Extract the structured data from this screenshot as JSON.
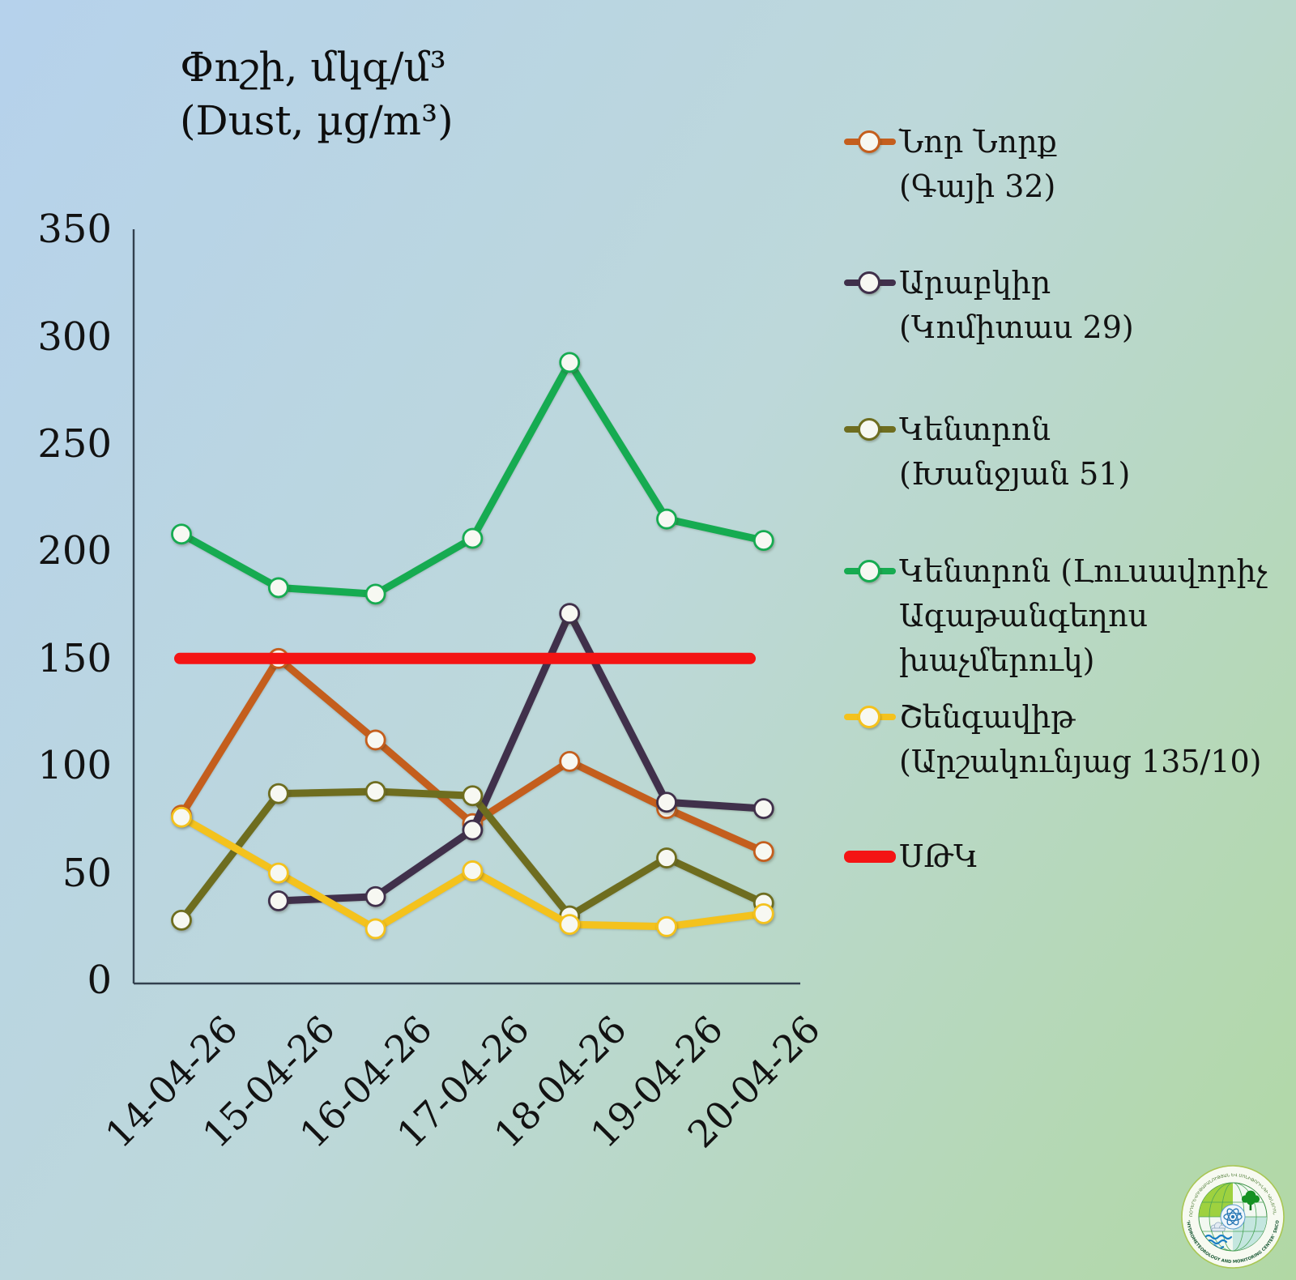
{
  "title": {
    "line1": "Փոշի, մկգ/մ³",
    "line2": "(Dust, µg/m³)"
  },
  "chart_data": {
    "type": "line",
    "x": [
      "14-04-26",
      "15-04-26",
      "16-04-26",
      "17-04-26",
      "18-04-26",
      "19-04-26",
      "20-04-26"
    ],
    "ylim": [
      0,
      350
    ],
    "yticks": [
      0,
      50,
      100,
      150,
      200,
      250,
      300,
      350
    ],
    "grid": false,
    "legend_position": "right",
    "marker_fill": "#f7f8f2",
    "series": [
      {
        "name": "Նոր Նորք (Գայի 32)",
        "legend_lines": [
          "Նոր Նորք",
          "(Գայի 32)"
        ],
        "color": "#c45e1d",
        "marker": "circle",
        "values": [
          77,
          150,
          112,
          73,
          102,
          80,
          60
        ]
      },
      {
        "name": "Արաբկիր (Կոմիտաս 29)",
        "legend_lines": [
          "Արաբկիր",
          "(Կոմիտաս 29)"
        ],
        "color": "#40304b",
        "marker": "circle",
        "values": [
          null,
          37,
          39,
          70,
          171,
          83,
          80
        ]
      },
      {
        "name": "Կենտրոն (Խանջյան 51)",
        "legend_lines": [
          "Կենտրոն",
          "(Խանջյան 51)"
        ],
        "color": "#6e6d1f",
        "marker": "circle",
        "values": [
          28,
          87,
          88,
          86,
          30,
          57,
          36
        ]
      },
      {
        "name": "Կենտրոն (Լուսավորիչ Ագաթանգեղոս խաչմերուկ)",
        "legend_lines": [
          "Կենտրոն (Լուսավորիչ",
          "Ագաթանգեղոս",
          "խաչմերուկ)"
        ],
        "color": "#16ab51",
        "marker": "circle",
        "values": [
          208,
          183,
          180,
          206,
          288,
          215,
          205
        ]
      },
      {
        "name": "Շենգավիթ (Արշակունյաց 135/10)",
        "legend_lines": [
          "Շենգավիթ",
          "(Արշակունյաց 135/10)"
        ],
        "color": "#f4c21d",
        "marker": "circle",
        "values": [
          76,
          50,
          24,
          51,
          26,
          25,
          31
        ]
      }
    ],
    "threshold": {
      "name": "ՍԹԿ",
      "legend_lines": [
        "ՍԹԿ"
      ],
      "color": "#f41414",
      "value": 150
    }
  },
  "logo": {
    "top_text": "ՀԻԴՐՈՕԴԵՐԵՎՈՒԹԱԲԱՆՈՒԹՅԱՆ ԵՎ ՄՈՆԻԹՈՐԻՆԳԻ ԿԵՆՏՐՈՆ ՊՈԱԿ",
    "bottom_text": "’HYDROMETEOROLOGY AND MONITORING CENTER’ SNCO"
  }
}
